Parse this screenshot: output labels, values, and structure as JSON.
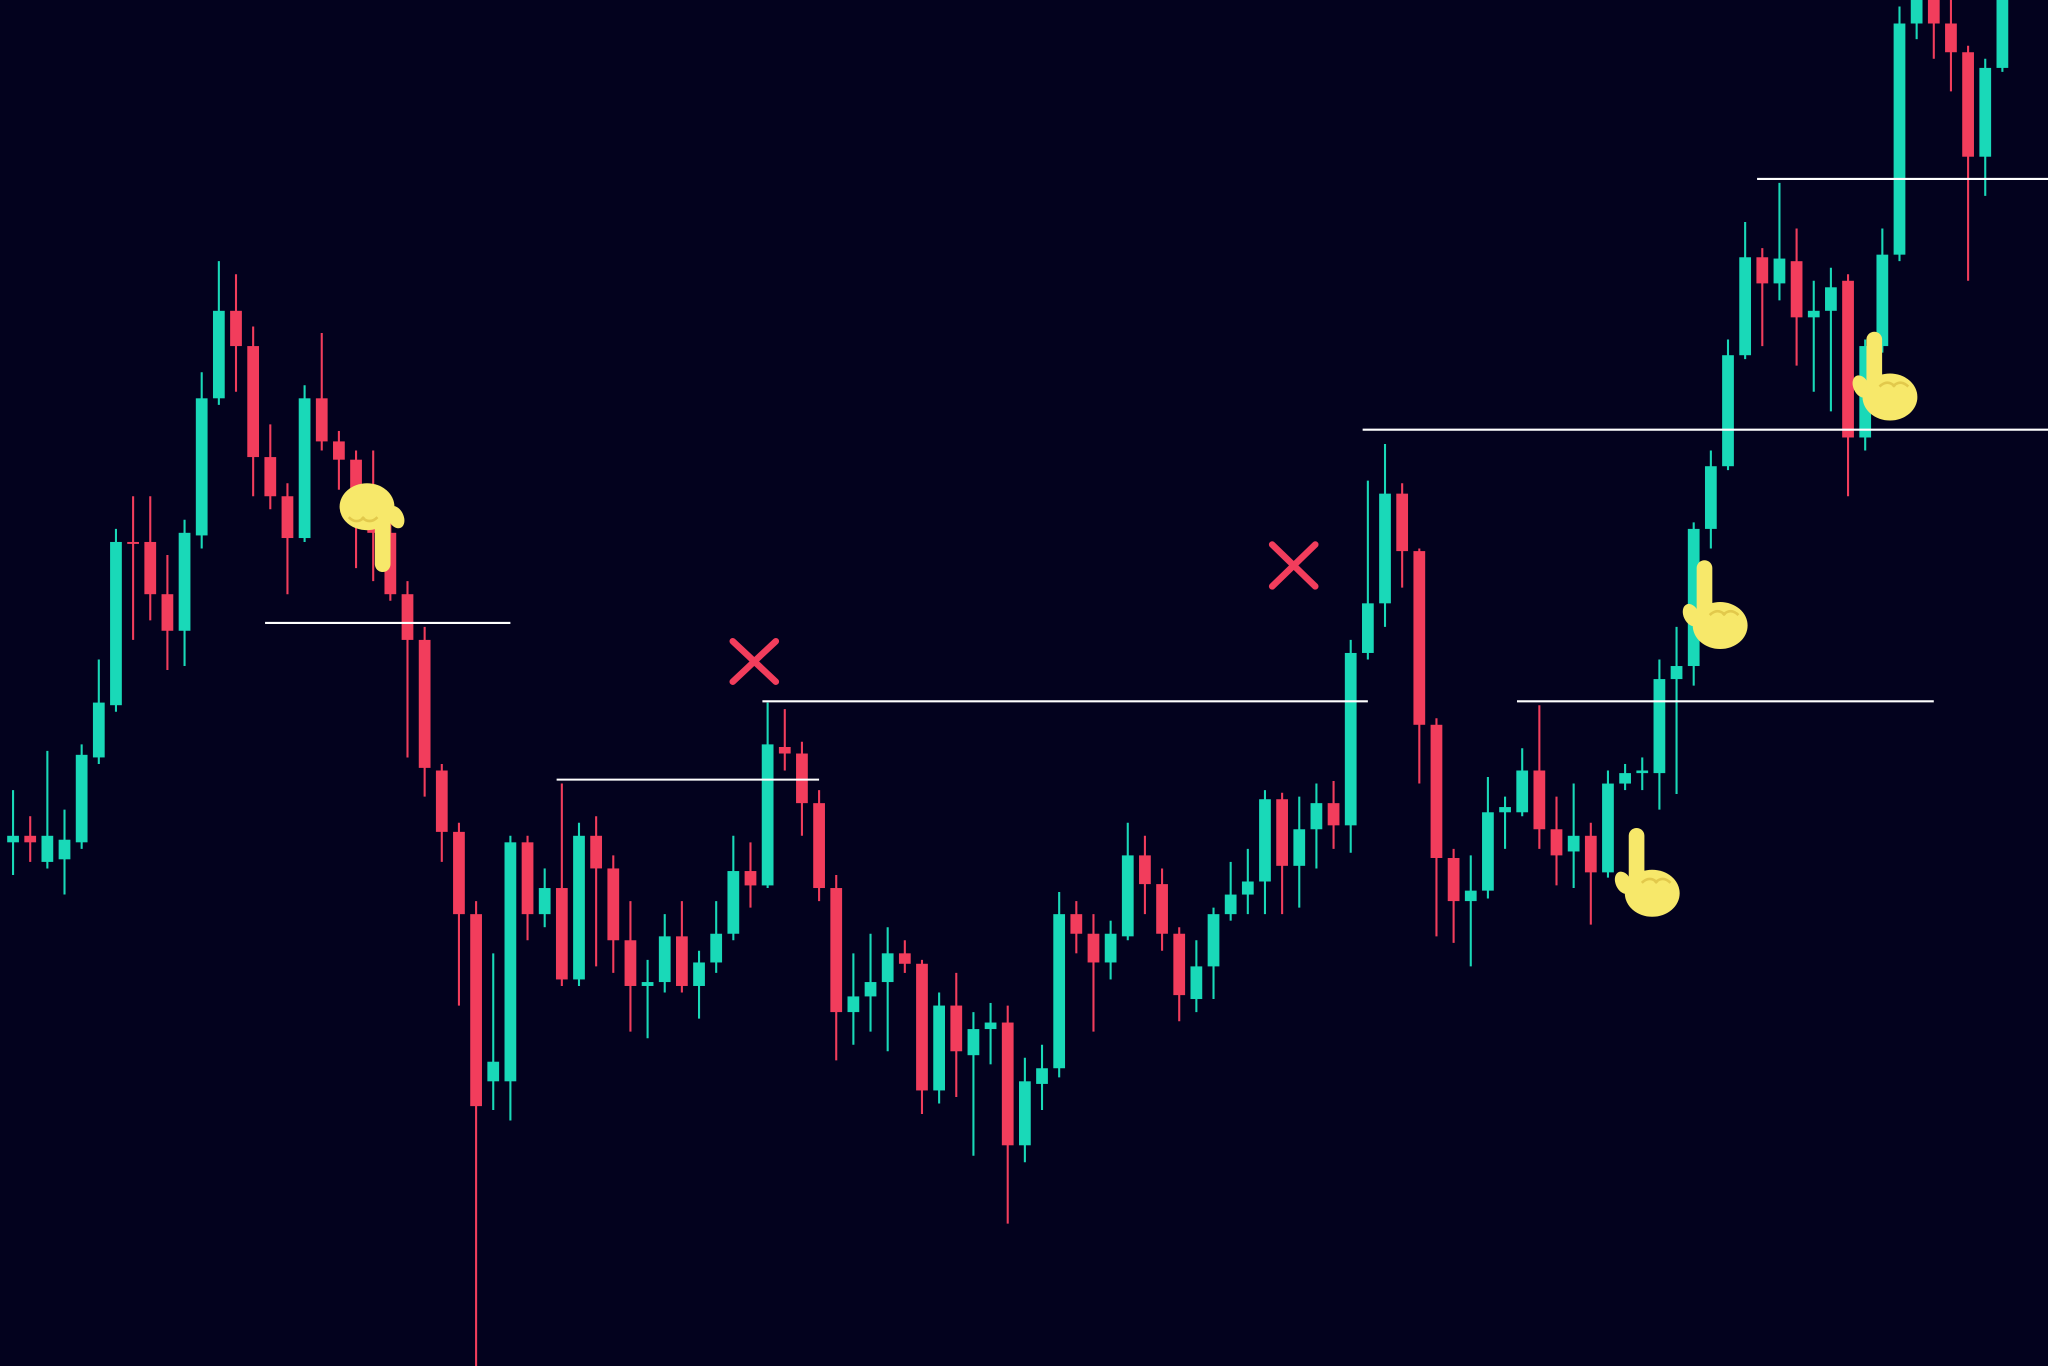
{
  "chart_data": {
    "type": "candlestick",
    "ylim": [
      54,
      1100
    ],
    "up_color": "#19d9b8",
    "down_color": "#f23d5c",
    "level_color": "#ffffff",
    "candles": [
      [
        455,
        495,
        430,
        460
      ],
      [
        460,
        475,
        440,
        455
      ],
      [
        440,
        525,
        435,
        460
      ],
      [
        442,
        480,
        415,
        457
      ],
      [
        455,
        530,
        450,
        522
      ],
      [
        520,
        595,
        515,
        562
      ],
      [
        560,
        695,
        555,
        685
      ],
      [
        685,
        720,
        610,
        684
      ],
      [
        685,
        720,
        625,
        645
      ],
      [
        645,
        675,
        587,
        617
      ],
      [
        617,
        702,
        590,
        692
      ],
      [
        690,
        815,
        680,
        795
      ],
      [
        795,
        900,
        790,
        862
      ],
      [
        862,
        890,
        800,
        835
      ],
      [
        835,
        850,
        720,
        750
      ],
      [
        750,
        775,
        710,
        720
      ],
      [
        720,
        730,
        645,
        688
      ],
      [
        688,
        805,
        685,
        795
      ],
      [
        795,
        845,
        755,
        762
      ],
      [
        762,
        770,
        725,
        748
      ],
      [
        748,
        755,
        665,
        722
      ],
      [
        722,
        755,
        655,
        692
      ],
      [
        692,
        705,
        640,
        645
      ],
      [
        645,
        655,
        520,
        610
      ],
      [
        610,
        620,
        490,
        512
      ],
      [
        510,
        515,
        440,
        463
      ],
      [
        463,
        470,
        330,
        400
      ],
      [
        400,
        410,
        54,
        253
      ],
      [
        272,
        370,
        250,
        287
      ],
      [
        272,
        460,
        242,
        455
      ],
      [
        455,
        460,
        380,
        400
      ],
      [
        400,
        435,
        390,
        420
      ],
      [
        420,
        500,
        345,
        350
      ],
      [
        350,
        470,
        345,
        460
      ],
      [
        460,
        475,
        360,
        435
      ],
      [
        435,
        445,
        355,
        380
      ],
      [
        380,
        410,
        310,
        345
      ],
      [
        345,
        365,
        305,
        348
      ],
      [
        348,
        400,
        340,
        383
      ],
      [
        383,
        410,
        340,
        345
      ],
      [
        345,
        372,
        320,
        363
      ],
      [
        363,
        410,
        355,
        385
      ],
      [
        385,
        460,
        380,
        433
      ],
      [
        433,
        455,
        405,
        422
      ],
      [
        422,
        562,
        420,
        530
      ],
      [
        528,
        557,
        510,
        523
      ],
      [
        523,
        532,
        460,
        485
      ],
      [
        485,
        495,
        410,
        420
      ],
      [
        420,
        430,
        288,
        325
      ],
      [
        325,
        370,
        300,
        337
      ],
      [
        337,
        385,
        310,
        348
      ],
      [
        348,
        390,
        295,
        370
      ],
      [
        370,
        380,
        355,
        362
      ],
      [
        362,
        365,
        247,
        265
      ],
      [
        265,
        340,
        255,
        330
      ],
      [
        330,
        355,
        260,
        295
      ],
      [
        292,
        325,
        215,
        312
      ],
      [
        312,
        332,
        285,
        317
      ],
      [
        317,
        330,
        163,
        223
      ],
      [
        223,
        290,
        210,
        272
      ],
      [
        270,
        300,
        250,
        282
      ],
      [
        282,
        417,
        275,
        400
      ],
      [
        400,
        410,
        370,
        385
      ],
      [
        385,
        400,
        310,
        363
      ],
      [
        363,
        395,
        350,
        385
      ],
      [
        383,
        470,
        380,
        445
      ],
      [
        445,
        460,
        400,
        423
      ],
      [
        423,
        435,
        372,
        385
      ],
      [
        385,
        390,
        318,
        338
      ],
      [
        335,
        380,
        325,
        360
      ],
      [
        360,
        405,
        335,
        400
      ],
      [
        400,
        440,
        395,
        415
      ],
      [
        415,
        450,
        400,
        425
      ],
      [
        425,
        495,
        400,
        488
      ],
      [
        488,
        493,
        400,
        437
      ],
      [
        437,
        490,
        405,
        465
      ],
      [
        465,
        500,
        435,
        485
      ],
      [
        485,
        502,
        450,
        468
      ],
      [
        468,
        610,
        447,
        600
      ],
      [
        600,
        732,
        595,
        638
      ],
      [
        638,
        760,
        620,
        722
      ],
      [
        722,
        730,
        650,
        678
      ],
      [
        678,
        680,
        500,
        545
      ],
      [
        545,
        550,
        383,
        443
      ],
      [
        443,
        450,
        378,
        410
      ],
      [
        410,
        445,
        360,
        418
      ],
      [
        418,
        505,
        412,
        478
      ],
      [
        478,
        490,
        450,
        482
      ],
      [
        478,
        527,
        475,
        510
      ],
      [
        510,
        560,
        450,
        465
      ],
      [
        465,
        490,
        422,
        445
      ],
      [
        448,
        500,
        420,
        460
      ],
      [
        460,
        470,
        392,
        432
      ],
      [
        432,
        510,
        428,
        500
      ],
      [
        500,
        515,
        495,
        508
      ],
      [
        508,
        520,
        495,
        510
      ],
      [
        508,
        595,
        480,
        580
      ],
      [
        580,
        620,
        492,
        590
      ],
      [
        590,
        700,
        575,
        695
      ],
      [
        695,
        755,
        680,
        743
      ],
      [
        743,
        840,
        740,
        828
      ],
      [
        828,
        930,
        825,
        903
      ],
      [
        903,
        910,
        835,
        883
      ],
      [
        883,
        960,
        870,
        902
      ],
      [
        900,
        925,
        820,
        857
      ],
      [
        857,
        885,
        800,
        862
      ],
      [
        862,
        895,
        785,
        880
      ],
      [
        885,
        890,
        720,
        765
      ],
      [
        765,
        840,
        755,
        835
      ],
      [
        835,
        925,
        830,
        905
      ],
      [
        905,
        1095,
        900,
        1082
      ],
      [
        1082,
        1100,
        1070,
        1100
      ],
      [
        1100,
        1100,
        1055,
        1082
      ],
      [
        1082,
        1100,
        1030,
        1060
      ],
      [
        1060,
        1065,
        885,
        980
      ],
      [
        980,
        1055,
        950,
        1048
      ],
      [
        1048,
        1100,
        1045,
        1100
      ]
    ],
    "levels": [
      {
        "value": 623,
        "from": 15,
        "to": 29
      },
      {
        "value": 503,
        "from": 32,
        "to": 47
      },
      {
        "value": 563,
        "from": 44,
        "to": 79
      },
      {
        "value": 771,
        "from": 79,
        "to": 119
      },
      {
        "value": 563,
        "from": 88,
        "to": 112
      },
      {
        "value": 963,
        "from": 102,
        "to": 119
      }
    ]
  }
}
